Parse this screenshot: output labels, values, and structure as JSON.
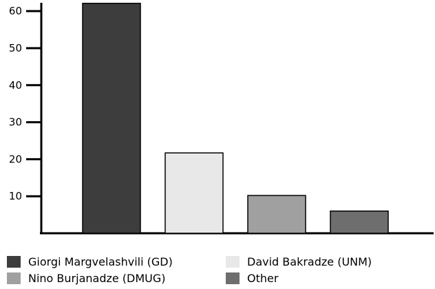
{
  "chart_data": {
    "type": "bar",
    "categories": [
      "Giorgi Margvelashvili (GD)",
      "David Bakradze (UNM)",
      "Nino Burjanadze (DMUG)",
      "Other"
    ],
    "values": [
      62.1,
      21.7,
      10.2,
      6.0
    ],
    "colors": [
      "#3d3d3d",
      "#e8e8e8",
      "#a0a0a0",
      "#6e6e6e"
    ],
    "ylim": [
      0,
      63
    ],
    "yticks": [
      10,
      20,
      30,
      40,
      50,
      60
    ],
    "grid": false,
    "legend_position": "bottom"
  }
}
